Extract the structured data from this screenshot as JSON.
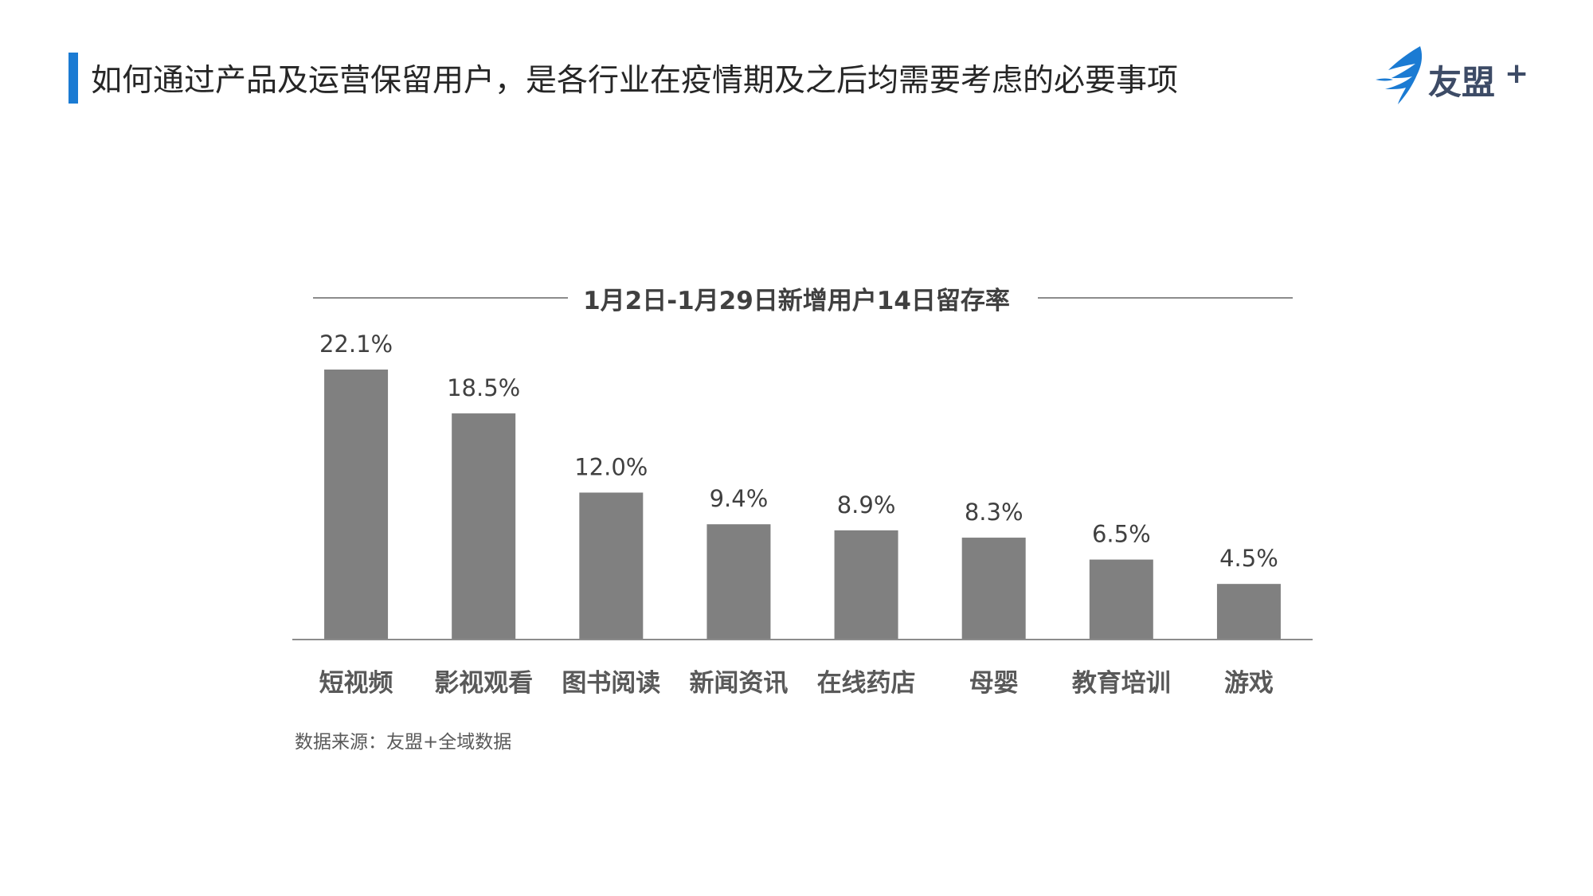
{
  "header": {
    "title": "如何通过产品及运营保留用户，是各行业在疫情期及之后均需要考虑的必要事项",
    "logo_text": "友盟",
    "logo_plus": "+",
    "accent_color": "#1b7bd3"
  },
  "chart_data": {
    "type": "bar",
    "title": "1月2日-1月29日新增用户14日留存率",
    "categories": [
      "短视频",
      "影视观看",
      "图书阅读",
      "新闻资讯",
      "在线药店",
      "母婴",
      "教育培训",
      "游戏"
    ],
    "values": [
      22.1,
      18.5,
      12.0,
      9.4,
      8.9,
      8.3,
      6.5,
      4.5
    ],
    "value_labels": [
      "22.1%",
      "18.5%",
      "12.0%",
      "9.4%",
      "8.9%",
      "8.3%",
      "6.5%",
      "4.5%"
    ],
    "ylim": [
      0,
      22.1
    ],
    "bar_color": "#808080",
    "grid": false
  },
  "footer": {
    "source": "数据来源：友盟+全域数据"
  }
}
